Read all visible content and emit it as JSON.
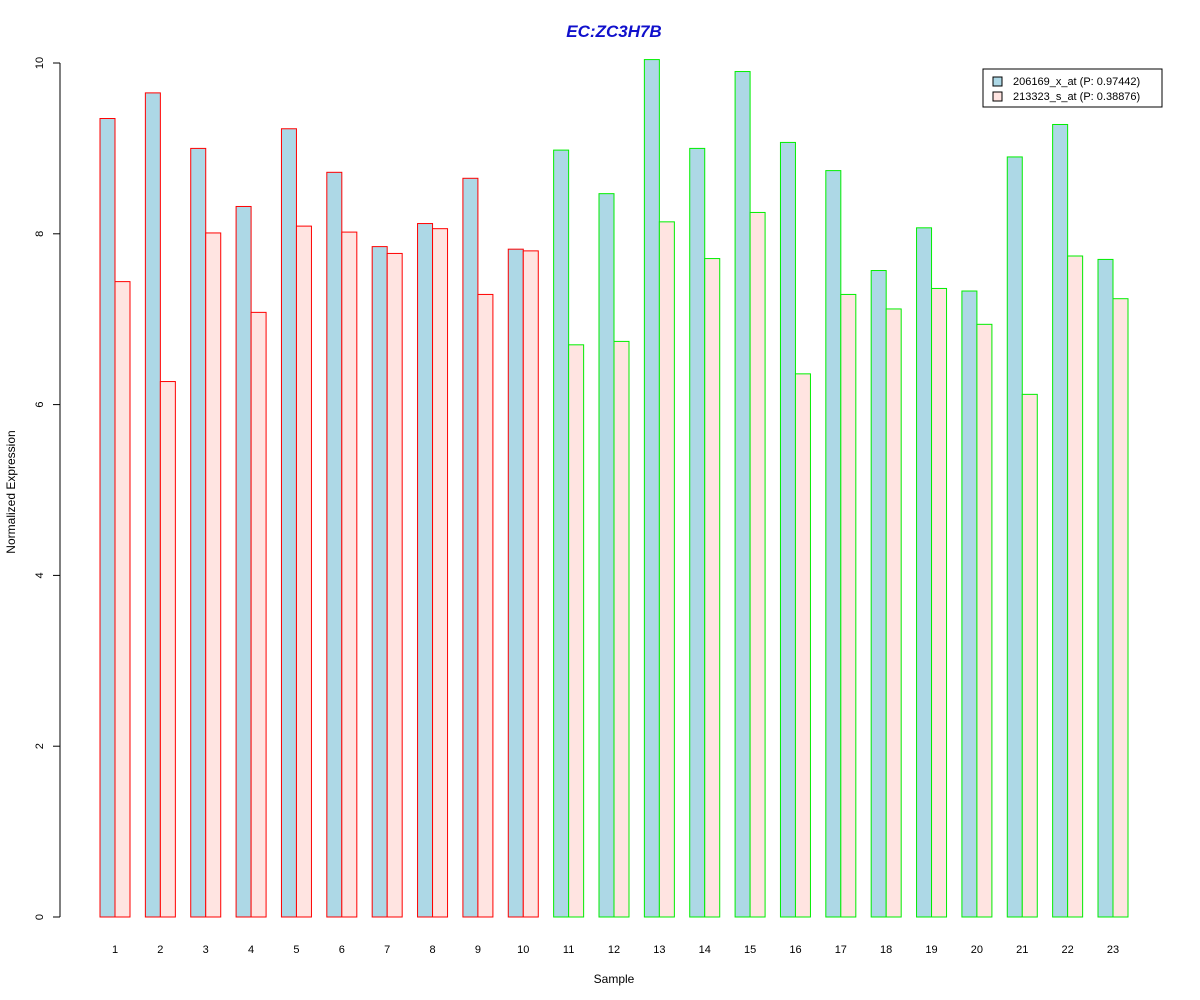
{
  "chart_data": {
    "type": "bar",
    "title": "EC:ZC3H7B",
    "xlabel": "Sample",
    "ylabel": "Normalized Expression",
    "ylim": [
      0,
      10
    ],
    "yticks": [
      "0",
      "2",
      "4",
      "6",
      "8",
      "10"
    ],
    "categories": [
      "1",
      "2",
      "3",
      "4",
      "5",
      "6",
      "7",
      "8",
      "9",
      "10",
      "11",
      "12",
      "13",
      "14",
      "15",
      "16",
      "17",
      "18",
      "19",
      "20",
      "21",
      "22",
      "23"
    ],
    "series": [
      {
        "name": "206169_x_at (P: 0.97442)",
        "fill": "#add8e6",
        "values": [
          9.35,
          9.65,
          9.0,
          8.32,
          9.23,
          8.72,
          7.85,
          8.12,
          8.65,
          7.82,
          8.98,
          8.47,
          10.04,
          9.0,
          9.9,
          9.07,
          8.74,
          7.57,
          8.07,
          7.33,
          8.9,
          9.28,
          7.7
        ]
      },
      {
        "name": "213323_s_at (P: 0.38876)",
        "fill": "#ffe4e1",
        "values": [
          7.44,
          6.27,
          8.01,
          7.08,
          8.09,
          8.02,
          7.77,
          8.06,
          7.29,
          7.8,
          6.7,
          6.74,
          8.14,
          7.71,
          8.25,
          6.36,
          7.29,
          7.12,
          7.36,
          6.94,
          6.12,
          7.74,
          7.24
        ]
      }
    ],
    "group_border_colors": [
      "#ff0000",
      "#ff0000",
      "#ff0000",
      "#ff0000",
      "#ff0000",
      "#ff0000",
      "#ff0000",
      "#ff0000",
      "#ff0000",
      "#ff0000",
      "#00ee00",
      "#00ee00",
      "#00ee00",
      "#00ee00",
      "#00ee00",
      "#00ee00",
      "#00ee00",
      "#00ee00",
      "#00ee00",
      "#00ee00",
      "#00ee00",
      "#00ee00",
      "#00ee00"
    ],
    "grid": false,
    "legend_position": "top-right"
  }
}
